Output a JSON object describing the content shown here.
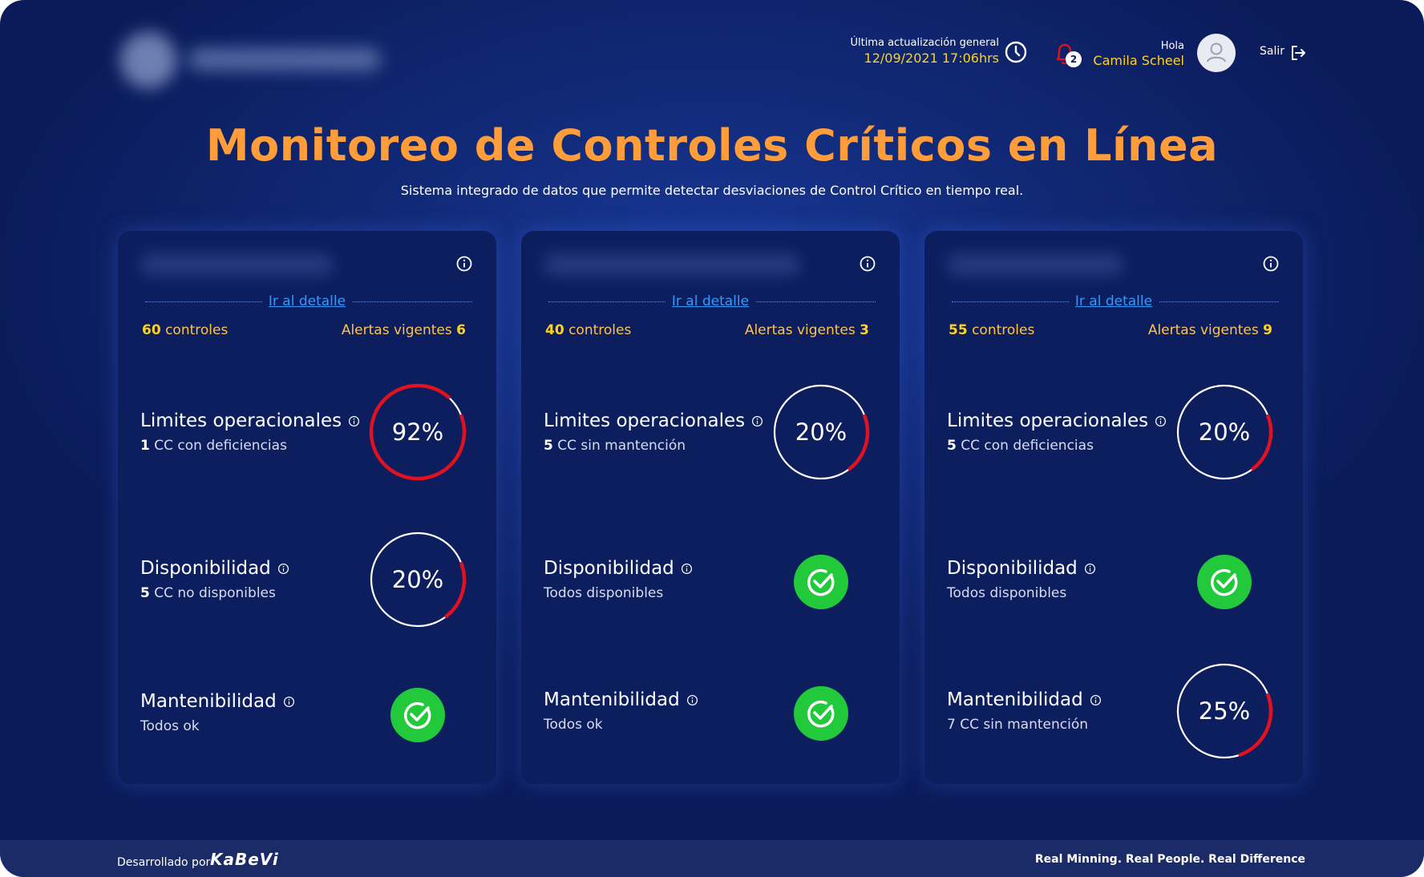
{
  "header": {
    "update_label": "Última actualización general",
    "update_value": "12/09/2021 17:06hrs",
    "notifications_count": "2",
    "greeting": "Hola",
    "user_name": "Camila Scheel",
    "logout_label": "Salir"
  },
  "page": {
    "title": "Monitoreo de Controles Críticos en Línea",
    "subtitle": "Sistema integrado de datos que permite detectar desviaciones de Control Crítico en tiempo real."
  },
  "cards": [
    {
      "detail_link": "Ir al detalle",
      "controls_count": "60",
      "controls_label": "controles",
      "alerts_label": "Alertas vigentes",
      "alerts_count": "6",
      "rows": [
        {
          "name": "Limites operacionales",
          "sub_count": "1",
          "sub_text": "CC con deficiencias",
          "type": "gauge",
          "value": 92,
          "label": "92%"
        },
        {
          "name": "Disponibilidad",
          "sub_count": "5",
          "sub_text": "CC no disponibles",
          "type": "gauge",
          "value": 20,
          "label": "20%"
        },
        {
          "name": "Mantenibilidad",
          "sub_count": "",
          "sub_text": "Todos ok",
          "type": "ok"
        }
      ]
    },
    {
      "detail_link": "Ir al detalle",
      "controls_count": "40",
      "controls_label": "controles",
      "alerts_label": "Alertas vigentes",
      "alerts_count": "3",
      "rows": [
        {
          "name": "Limites operacionales",
          "sub_count": "5",
          "sub_text": "CC sin mantención",
          "type": "gauge",
          "value": 20,
          "label": "20%"
        },
        {
          "name": "Disponibilidad",
          "sub_count": "",
          "sub_text": "Todos disponibles",
          "type": "ok"
        },
        {
          "name": "Mantenibilidad",
          "sub_count": "",
          "sub_text": "Todos ok",
          "type": "ok"
        }
      ]
    },
    {
      "detail_link": "Ir al detalle",
      "controls_count": "55",
      "controls_label": "controles",
      "alerts_label": "Alertas vigentes",
      "alerts_count": "9",
      "rows": [
        {
          "name": "Limites operacionales",
          "sub_count": "5",
          "sub_text": "CC con deficiencias",
          "type": "gauge",
          "value": 20,
          "label": "20%"
        },
        {
          "name": "Disponibilidad",
          "sub_count": "",
          "sub_text": "Todos disponibles",
          "type": "ok"
        },
        {
          "name": "Mantenibilidad",
          "sub_count": "",
          "sub_text": "7 CC sin mantención",
          "type": "gauge",
          "value": 25,
          "label": "25%"
        }
      ]
    }
  ],
  "footer": {
    "developed_by": "Desarrollado por",
    "brand": "KaBeVi",
    "motto": "Real Minning. Real People. Real Difference"
  },
  "colors": {
    "accent_title": "#ff9d3a",
    "highlight": "#ffd21f",
    "alert_red": "#e0121f",
    "ok_green": "#22c93b",
    "link_blue": "#2f9bff"
  }
}
